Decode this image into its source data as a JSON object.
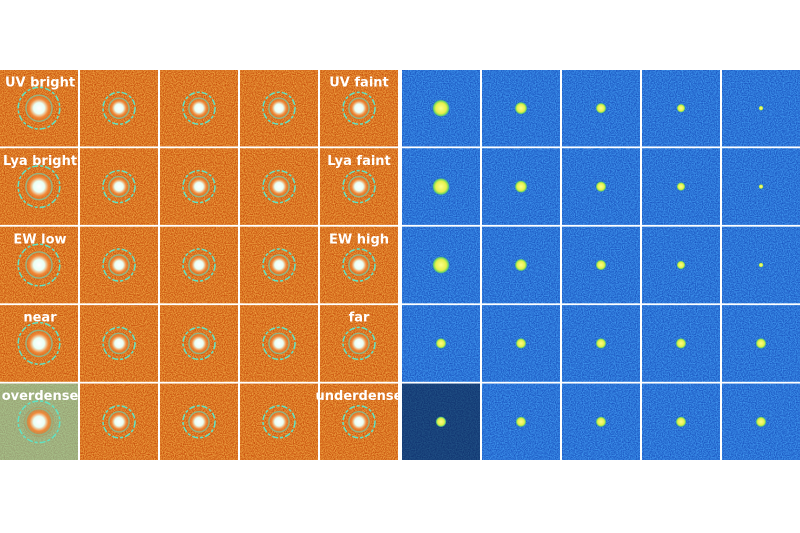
{
  "rows": [
    {
      "left_label": "UV bright",
      "right_label": "UV faint"
    },
    {
      "left_label": "Lya bright",
      "right_label": "Lya faint"
    },
    {
      "left_label": "EW low",
      "right_label": "EW high"
    },
    {
      "left_label": "near",
      "right_label": "far"
    },
    {
      "left_label": "overdense",
      "right_label": "underdense"
    }
  ]
}
